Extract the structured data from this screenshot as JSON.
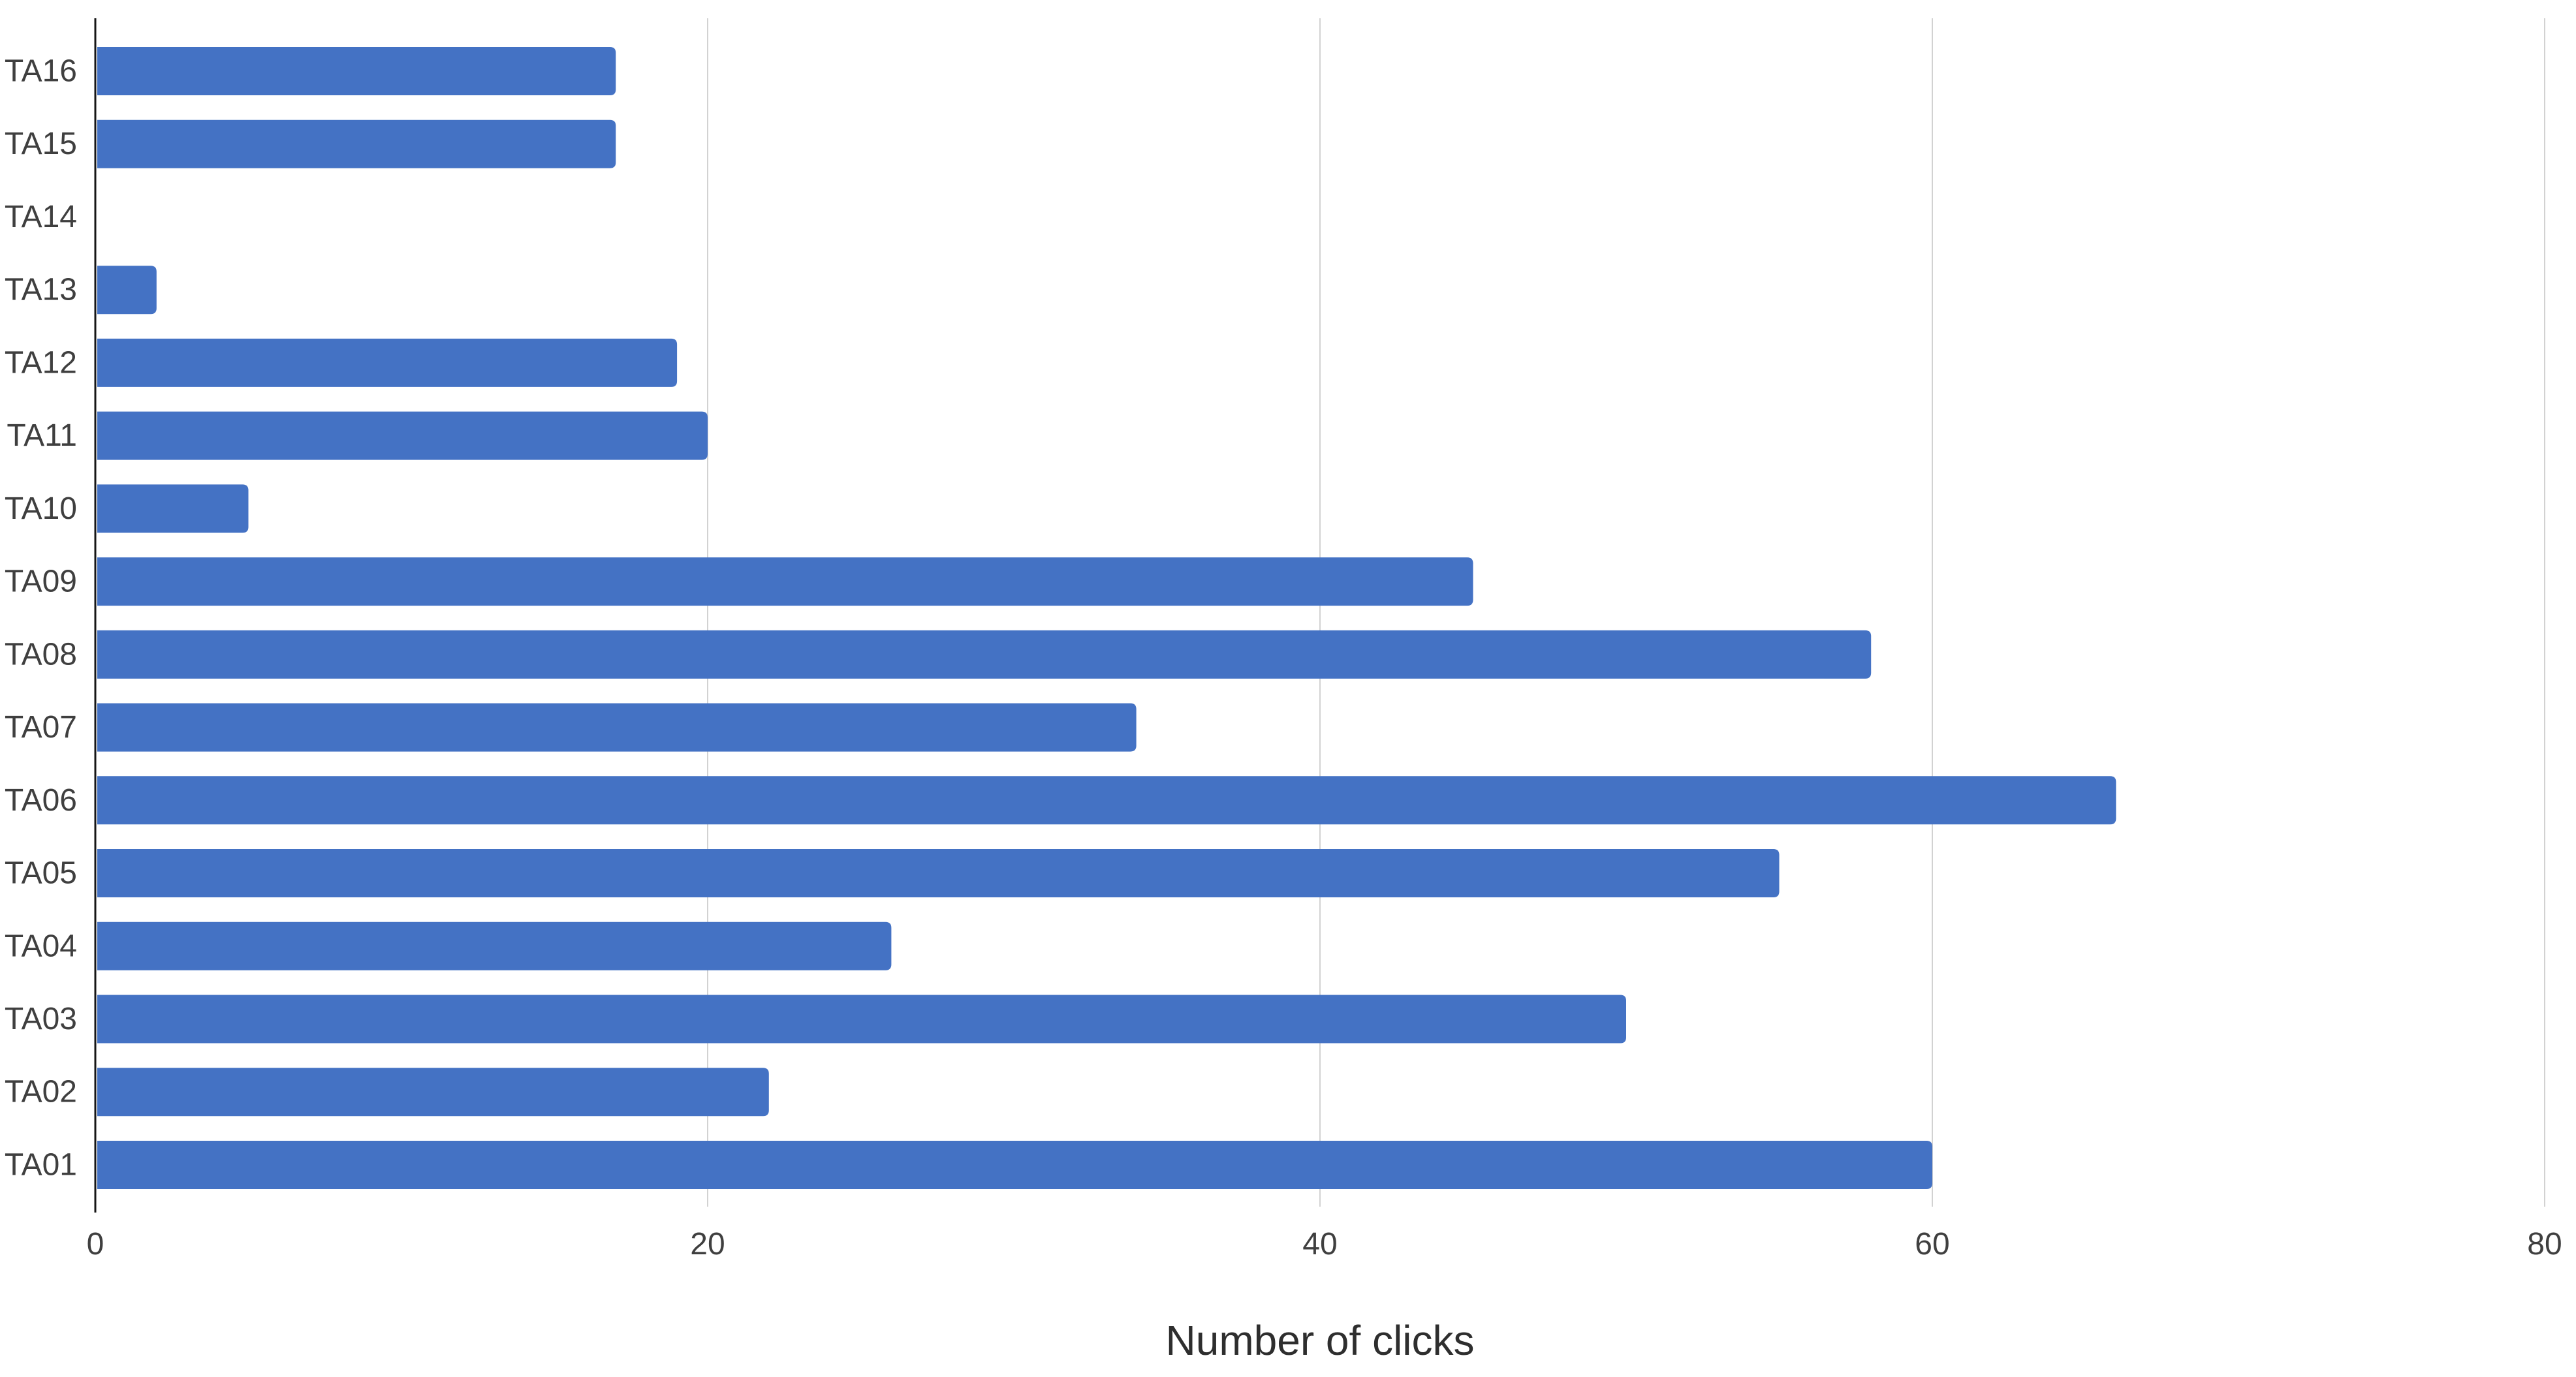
{
  "chart_data": {
    "type": "bar",
    "orientation": "horizontal",
    "title": "",
    "xlabel": "Number of clicks",
    "ylabel": "",
    "categories": [
      "TA16",
      "TA15",
      "TA14",
      "TA13",
      "TA12",
      "TA11",
      "TA10",
      "TA09",
      "TA08",
      "TA07",
      "TA06",
      "TA05",
      "TA04",
      "TA03",
      "TA02",
      "TA01"
    ],
    "values": [
      17,
      17,
      0,
      2,
      19,
      20,
      5,
      45,
      58,
      34,
      66,
      55,
      26,
      50,
      22,
      60
    ],
    "xlim": [
      0,
      80
    ],
    "xticks": [
      0,
      20,
      40,
      60,
      80
    ],
    "grid": "vertical-gridlines-only",
    "legend": "none",
    "bar_color": "#4472C4",
    "gridline_color": "#D2D2D2",
    "axis_line_color": "#161616",
    "label_color": "#3F3F3F",
    "title_color": "#2E2E2E"
  }
}
